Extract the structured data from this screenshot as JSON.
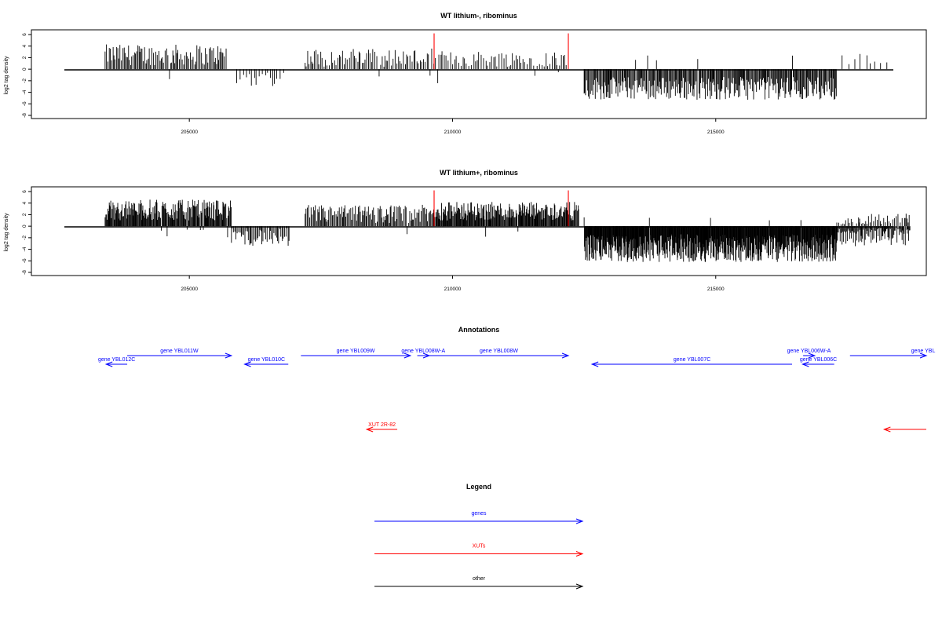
{
  "chart_data": [
    {
      "type": "bar",
      "title": "WT lithium-, ribominus",
      "xlabel": "",
      "ylabel": "log2 tag density",
      "xlim": [
        202000,
        219000
      ],
      "ylim": [
        -8,
        6
      ],
      "xticks": [
        205000,
        210000,
        215000
      ],
      "xtick_labels": [
        "205000",
        "210000",
        "215000"
      ],
      "yticks": [
        6,
        4,
        2,
        0,
        -2,
        -4,
        -6,
        -8
      ],
      "ytick_labels": [
        "6",
        "4",
        "2",
        "0",
        "-2",
        "-4",
        "-6",
        "-8"
      ],
      "series": [
        {
          "color": "#000000",
          "segments": [
            {
              "start": 203400,
              "end": 205700,
              "base": 2.5,
              "amp": 1.8,
              "step": 22,
              "sign": 1
            },
            {
              "start": 205900,
              "end": 206800,
              "base": -1.5,
              "amp": 1.5,
              "step": 45,
              "sign": -1
            },
            {
              "start": 207200,
              "end": 209800,
              "base": 2.0,
              "amp": 1.6,
              "step": 30,
              "sign": 1
            },
            {
              "start": 209800,
              "end": 212200,
              "base": 1.8,
              "amp": 1.4,
              "step": 35,
              "sign": 1
            },
            {
              "start": 212500,
              "end": 217300,
              "base": -3.3,
              "amp": 2.0,
              "step": 16,
              "sign": -1
            },
            {
              "start": 217400,
              "end": 218300,
              "base": 1.6,
              "amp": 1.2,
              "step": 90,
              "sign": 1
            }
          ]
        }
      ],
      "highlights": [
        {
          "x": 209650,
          "y": 6.2,
          "color": "#ff0000"
        },
        {
          "x": 212200,
          "y": 6.2,
          "color": "#ff0000"
        }
      ]
    },
    {
      "type": "bar",
      "title": "WT lithium+, ribominus",
      "xlabel": "",
      "ylabel": "log2 tag density",
      "xlim": [
        202000,
        219000
      ],
      "ylim": [
        -8,
        6
      ],
      "xticks": [
        205000,
        210000,
        215000
      ],
      "xtick_labels": [
        "205000",
        "210000",
        "215000"
      ],
      "yticks": [
        6,
        4,
        2,
        0,
        -2,
        -4,
        -6,
        -8
      ],
      "ytick_labels": [
        "6",
        "4",
        "2",
        "0",
        "-2",
        "-4",
        "-6",
        "-8"
      ],
      "series": [
        {
          "color": "#000000",
          "segments": [
            {
              "start": 203400,
              "end": 205800,
              "base": 2.8,
              "amp": 1.8,
              "step": 12,
              "sign": 1
            },
            {
              "start": 205800,
              "end": 206900,
              "base": -1.8,
              "amp": 1.6,
              "step": 20,
              "sign": -1
            },
            {
              "start": 207200,
              "end": 209700,
              "base": 2.1,
              "amp": 1.6,
              "step": 18,
              "sign": 1
            },
            {
              "start": 209700,
              "end": 212400,
              "base": 2.6,
              "amp": 1.6,
              "step": 12,
              "sign": 1
            },
            {
              "start": 212500,
              "end": 217300,
              "base": -3.8,
              "amp": 2.4,
              "step": 8,
              "sign": -1
            },
            {
              "start": 217300,
              "end": 218700,
              "base": -1.5,
              "amp": 2.0,
              "step": 14,
              "sign": -1
            },
            {
              "start": 217300,
              "end": 218700,
              "base": 1.2,
              "amp": 1.0,
              "step": 30,
              "sign": 1
            }
          ]
        }
      ],
      "highlights": [
        {
          "x": 209650,
          "y": 6.2,
          "color": "#ff0000"
        },
        {
          "x": 212200,
          "y": 6.2,
          "color": "#ff0000"
        }
      ]
    }
  ],
  "annotations": {
    "title": "Annotations",
    "xlim": [
      202000,
      219000
    ],
    "genes_color": "#0000ff",
    "xuts_color": "#ff0000",
    "genes": [
      {
        "label": "gene YBL012C",
        "start": 203420,
        "end": 203820,
        "strand": "-",
        "row": 1
      },
      {
        "label": "gene YBL011W",
        "start": 203820,
        "end": 205800,
        "strand": "+",
        "row": 0
      },
      {
        "label": "gene YBL010C",
        "start": 206050,
        "end": 206880,
        "strand": "-",
        "row": 1
      },
      {
        "label": "gene YBL009W",
        "start": 207120,
        "end": 209200,
        "strand": "+",
        "row": 0
      },
      {
        "label": "gene YBL008W-A",
        "start": 209330,
        "end": 209560,
        "strand": "+",
        "row": 0
      },
      {
        "label": "gene YBL008W",
        "start": 209560,
        "end": 212200,
        "strand": "+",
        "row": 0
      },
      {
        "label": "gene YBL007C",
        "start": 212650,
        "end": 216450,
        "strand": "-",
        "row": 1
      },
      {
        "label": "gene YBL006W-A",
        "start": 216660,
        "end": 216880,
        "strand": "+",
        "row": 0
      },
      {
        "label": "gene YBL006C",
        "start": 216650,
        "end": 217250,
        "strand": "-",
        "row": 1
      },
      {
        "label": "gene YBL",
        "start": 217550,
        "end": 219000,
        "strand": "+",
        "row": 0
      }
    ],
    "xuts": [
      {
        "label": "XUT 2R-82",
        "start": 208370,
        "end": 208950,
        "strand": "-"
      },
      {
        "label": "",
        "start": 218200,
        "end": 219000,
        "strand": "-"
      }
    ]
  },
  "legend": {
    "title": "Legend",
    "items": [
      {
        "label": "genes",
        "color": "#0000ff"
      },
      {
        "label": "XUTs",
        "color": "#ff0000"
      },
      {
        "label": "other",
        "color": "#000000"
      }
    ]
  }
}
